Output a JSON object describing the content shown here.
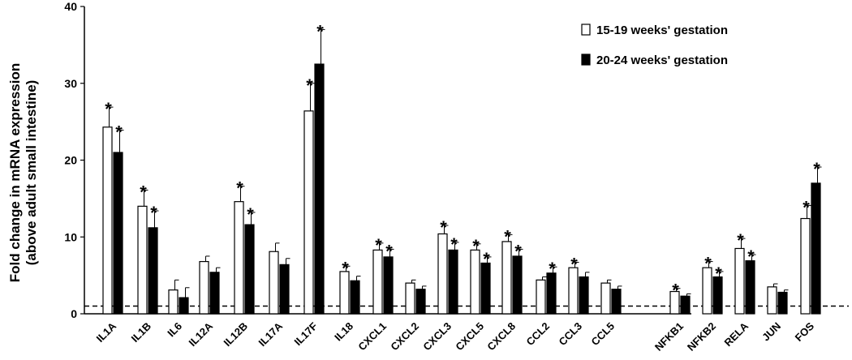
{
  "chart_data": {
    "type": "bar",
    "ylabel_line1": "Fold change in mRNA expression",
    "ylabel_line2": "(above adult small intestine)",
    "ylim": [
      0,
      40
    ],
    "yticks": [
      0,
      10,
      20,
      30,
      40
    ],
    "reference_line": 1,
    "legend_position": "top-right",
    "colors": {
      "series1": "#ffffff",
      "series2": "#000000"
    },
    "categories": [
      "IL1A",
      "IL1B",
      "IL6",
      "IL12A",
      "IL12B",
      "IL17A",
      "IL17F",
      "IL18",
      "CXCL1",
      "CXCL2",
      "CXCL3",
      "CXCL5",
      "CXCL8",
      "CCL2",
      "CCL3",
      "CCL5",
      "NFKB1",
      "NFKB2",
      "RELA",
      "JUN",
      "FOS"
    ],
    "series": [
      {
        "name": "15-19 weeks' gestation",
        "values": [
          24.3,
          14.0,
          3.1,
          6.8,
          14.6,
          8.1,
          26.4,
          5.5,
          8.3,
          4.0,
          10.4,
          8.3,
          9.4,
          4.4,
          6.0,
          4.0,
          2.9,
          6.0,
          8.5,
          3.5,
          12.4
        ],
        "errors": [
          2.6,
          2.1,
          1.3,
          0.7,
          2.0,
          1.1,
          3.6,
          0.7,
          0.9,
          0.4,
          1.1,
          0.8,
          0.9,
          0.4,
          0.7,
          0.4,
          0.4,
          0.8,
          1.3,
          0.4,
          1.7
        ],
        "significant": [
          true,
          true,
          false,
          false,
          true,
          false,
          true,
          true,
          true,
          false,
          true,
          true,
          true,
          false,
          true,
          false,
          true,
          true,
          true,
          false,
          true
        ]
      },
      {
        "name": "20-24 weeks' gestation",
        "values": [
          21.0,
          11.2,
          2.1,
          5.4,
          11.6,
          6.4,
          32.5,
          4.3,
          7.4,
          3.2,
          8.3,
          6.6,
          7.5,
          5.3,
          4.8,
          3.2,
          2.3,
          4.8,
          6.9,
          2.8,
          17.0
        ],
        "errors": [
          2.9,
          2.2,
          1.3,
          0.6,
          1.6,
          0.8,
          4.5,
          0.6,
          1.0,
          0.4,
          1.0,
          0.8,
          0.9,
          0.8,
          0.6,
          0.4,
          0.3,
          0.7,
          0.8,
          0.3,
          2.1
        ],
        "significant": [
          true,
          true,
          false,
          false,
          true,
          false,
          true,
          false,
          true,
          false,
          true,
          true,
          true,
          true,
          false,
          false,
          false,
          true,
          true,
          false,
          true
        ]
      }
    ],
    "significance_marker": "*"
  }
}
